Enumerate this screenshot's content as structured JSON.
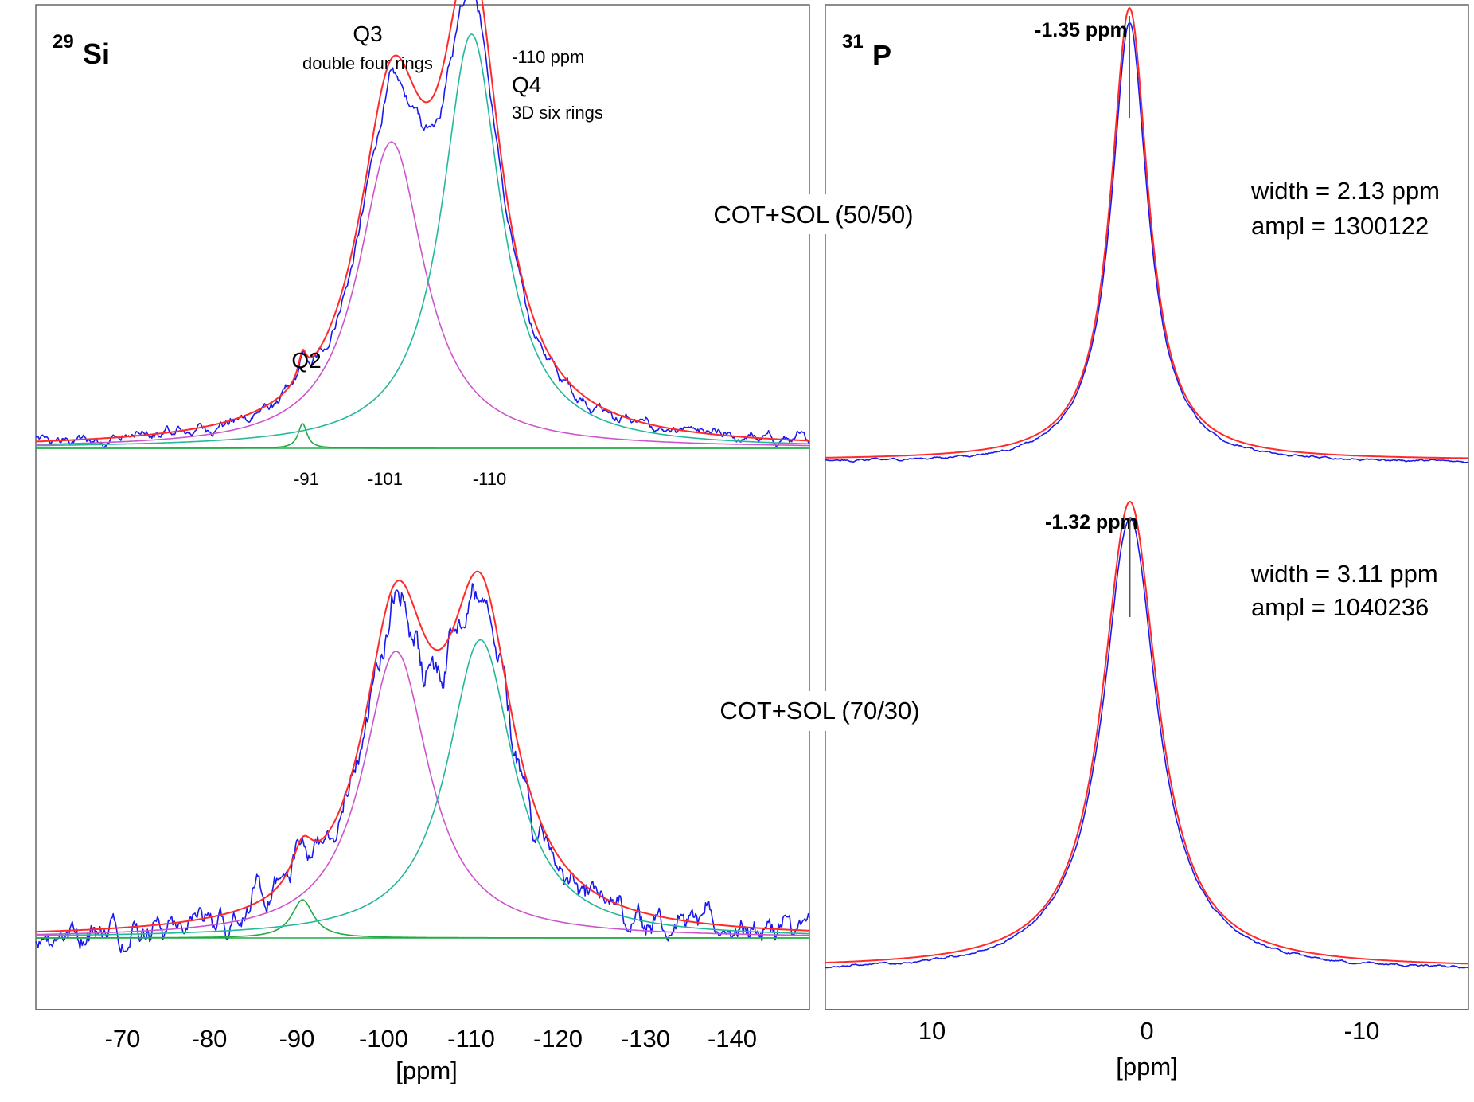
{
  "colors": {
    "experimental": "#1a1aee",
    "fit_total": "#ff2a2a",
    "q2": "#22aa44",
    "q3": "#cc55cc",
    "q4": "#22b89a",
    "baseline": "#22aa44",
    "axis": "#ff3333",
    "marker": "#555555"
  },
  "si_panel": {
    "nucleus_mass": "29",
    "nucleus_symbol": "Si",
    "x_ticks": [
      "-70",
      "-80",
      "-90",
      "-100",
      "-110",
      "-120",
      "-130",
      "-140"
    ],
    "x_label": "[ppm]",
    "q2_label": "Q2",
    "q3_label": "Q3",
    "q3_sub": "double four rings",
    "q4_ppm": "-110 ppm",
    "q4_label": "Q4",
    "q4_sub": "3D six rings",
    "peak_pos_labels": [
      "-91",
      "-101",
      "-110"
    ]
  },
  "p_panel": {
    "nucleus_mass": "31",
    "nucleus_symbol": "P",
    "x_ticks": [
      "10",
      "0",
      "-10"
    ],
    "x_label": "[ppm]",
    "top_peak": "-1.35 ppm",
    "bottom_peak": "-1.32 ppm",
    "top_width": "width =  2.13 ppm",
    "top_ampl": "ampl =  1300122",
    "bottom_width": "width  = 3.11 ppm",
    "bottom_ampl": "ampl = 1040236"
  },
  "samples": {
    "top": "COT+SOL (50/50)",
    "bottom": "COT+SOL (70/30)"
  },
  "chart_data": [
    {
      "type": "line",
      "title": "29Si",
      "xlabel": "[ppm]",
      "xlim": [
        -61,
        -148
      ],
      "x_reversed": true,
      "spectra": [
        {
          "sample": "COT+SOL (50/50)",
          "components": [
            {
              "name": "Q2",
              "center": -91,
              "fwhm": 1.2,
              "height": 0.06
            },
            {
              "name": "Q3",
              "center": -101,
              "fwhm": 9.0,
              "height": 0.74
            },
            {
              "name": "Q4",
              "center": -110,
              "fwhm": 8.0,
              "height": 1.0
            }
          ],
          "noise": 0.022
        },
        {
          "sample": "COT+SOL (70/30)",
          "components": [
            {
              "name": "Q2",
              "center": -91,
              "fwhm": 3.0,
              "height": 0.1
            },
            {
              "name": "Q3",
              "center": -101.5,
              "fwhm": 9.0,
              "height": 0.75
            },
            {
              "name": "Q4",
              "center": -111,
              "fwhm": 9.0,
              "height": 0.78
            }
          ],
          "noise": 0.06
        }
      ]
    },
    {
      "type": "line",
      "title": "31P",
      "xlabel": "[ppm]",
      "xlim": [
        15,
        -15
      ],
      "x_reversed": true,
      "spectra": [
        {
          "sample": "COT+SOL (50/50)",
          "center": -1.35,
          "width_ppm": 2.13,
          "amplitude": 1300122
        },
        {
          "sample": "COT+SOL (70/30)",
          "center": -1.32,
          "width_ppm": 3.11,
          "amplitude": 1040236
        }
      ]
    }
  ]
}
